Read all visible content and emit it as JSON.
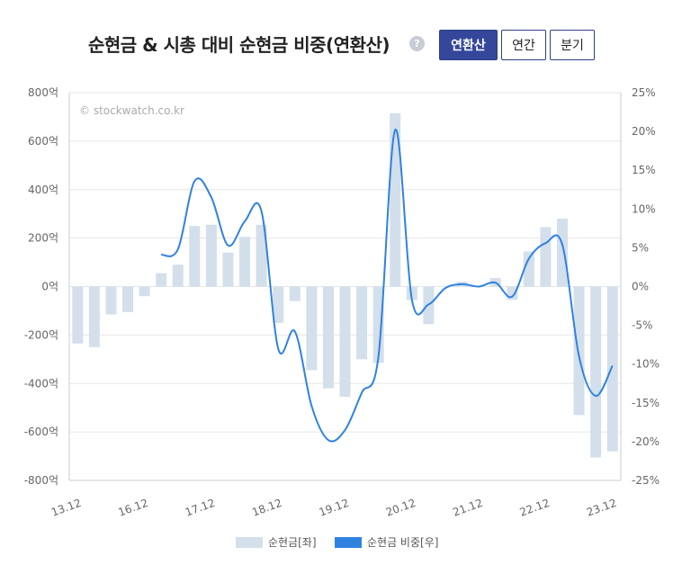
{
  "header": {
    "title": "순현금 & 시총 대비 순현금 비중(연환산)",
    "help": "?",
    "tabs": [
      {
        "label": "연환산",
        "active": true
      },
      {
        "label": "연간",
        "active": false
      },
      {
        "label": "분기",
        "active": false
      }
    ]
  },
  "watermark": "© stockwatch.co.kr",
  "legend": [
    {
      "label": "순현금[좌]",
      "color": "#d3dfea"
    },
    {
      "label": "순현금 비중[우]",
      "color": "#2f82e0"
    }
  ],
  "colors": {
    "bar": "#d3dfea",
    "line": "#2f82e0",
    "grid": "#e6e6e6"
  },
  "chart_data": {
    "type": "bar+line",
    "x_tick_labels": [
      "13.12",
      "16.12",
      "17.12",
      "18.12",
      "19.12",
      "20.12",
      "21.12",
      "22.12",
      "23.12"
    ],
    "y_left": {
      "min": -800,
      "max": 800,
      "step": 200,
      "unit": "억",
      "ticks": [
        "800억",
        "600억",
        "400억",
        "200억",
        "0억",
        "-200억",
        "-400억",
        "-600억",
        "-800억"
      ]
    },
    "y_right": {
      "min": -25,
      "max": 25,
      "step": 5,
      "unit": "%",
      "ticks": [
        "25%",
        "20%",
        "15%",
        "10%",
        "5%",
        "0%",
        "-5%",
        "-10%",
        "-15%",
        "-20%",
        "-25%"
      ]
    },
    "series": [
      {
        "name": "순현금[좌]",
        "type": "bar",
        "axis": "left",
        "values": [
          -235,
          -250,
          -115,
          -105,
          -40,
          55,
          90,
          250,
          255,
          140,
          205,
          255,
          -150,
          -60,
          -345,
          -420,
          -455,
          -300,
          -315,
          715,
          -55,
          -155,
          0,
          20,
          0,
          35,
          -55,
          145,
          245,
          280,
          -530,
          -705,
          -680
        ]
      },
      {
        "name": "순현금 비중[우]",
        "type": "line",
        "axis": "right",
        "values": [
          null,
          null,
          null,
          null,
          null,
          4.1,
          4.8,
          13.6,
          11.5,
          5.3,
          8.4,
          9.7,
          -8.0,
          -5.8,
          -15.4,
          -19.8,
          -18.5,
          -13.7,
          -9.0,
          20.2,
          -1.7,
          -2.3,
          -0.2,
          0.3,
          0.0,
          0.5,
          -1.3,
          3.6,
          5.6,
          5.4,
          -9.0,
          -14.1,
          -10.2
        ]
      }
    ]
  }
}
